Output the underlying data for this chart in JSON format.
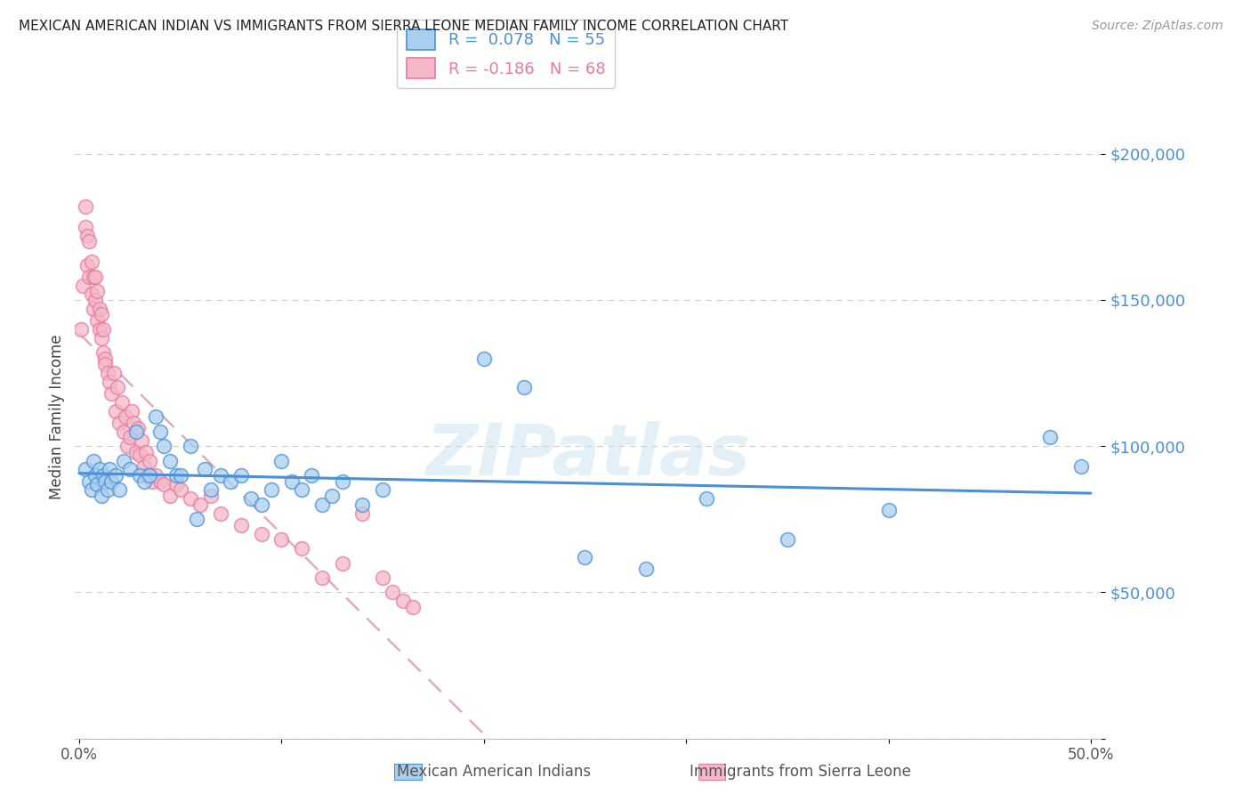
{
  "title": "MEXICAN AMERICAN INDIAN VS IMMIGRANTS FROM SIERRA LEONE MEDIAN FAMILY INCOME CORRELATION CHART",
  "source": "Source: ZipAtlas.com",
  "ylabel": "Median Family Income",
  "yticks": [
    0,
    50000,
    100000,
    150000,
    200000
  ],
  "ytick_labels": [
    "",
    "$50,000",
    "$100,000",
    "$150,000",
    "$200,000"
  ],
  "ylim": [
    0,
    220000
  ],
  "xlim": [
    -0.002,
    0.505
  ],
  "blue_color": "#aacfee",
  "pink_color": "#f4b8c8",
  "blue_line_color": "#4a90d9",
  "pink_line_color": "#e87ba0",
  "pink_dashed_color": "#d4a0b0",
  "watermark": "ZIPatlas",
  "legend_blue_label": "R =  0.078   N = 55",
  "legend_pink_label": "R = -0.186   N = 68",
  "legend_bottom_blue": "Mexican American Indians",
  "legend_bottom_pink": "Immigrants from Sierra Leone",
  "blue_x": [
    0.003,
    0.005,
    0.006,
    0.007,
    0.008,
    0.009,
    0.01,
    0.011,
    0.012,
    0.013,
    0.014,
    0.015,
    0.016,
    0.018,
    0.02,
    0.022,
    0.025,
    0.028,
    0.03,
    0.032,
    0.035,
    0.038,
    0.04,
    0.042,
    0.045,
    0.048,
    0.05,
    0.055,
    0.058,
    0.062,
    0.065,
    0.07,
    0.075,
    0.08,
    0.085,
    0.09,
    0.095,
    0.1,
    0.105,
    0.11,
    0.115,
    0.12,
    0.125,
    0.13,
    0.14,
    0.15,
    0.2,
    0.22,
    0.25,
    0.28,
    0.31,
    0.35,
    0.4,
    0.48,
    0.495
  ],
  "blue_y": [
    92000,
    88000,
    85000,
    95000,
    90000,
    87000,
    92000,
    83000,
    90000,
    88000,
    85000,
    92000,
    88000,
    90000,
    85000,
    95000,
    92000,
    105000,
    90000,
    88000,
    90000,
    110000,
    105000,
    100000,
    95000,
    90000,
    90000,
    100000,
    75000,
    92000,
    85000,
    90000,
    88000,
    90000,
    82000,
    80000,
    85000,
    95000,
    88000,
    85000,
    90000,
    80000,
    83000,
    88000,
    80000,
    85000,
    130000,
    120000,
    62000,
    58000,
    82000,
    68000,
    78000,
    103000,
    93000
  ],
  "pink_x": [
    0.001,
    0.002,
    0.003,
    0.003,
    0.004,
    0.004,
    0.005,
    0.005,
    0.006,
    0.006,
    0.007,
    0.007,
    0.008,
    0.008,
    0.009,
    0.009,
    0.01,
    0.01,
    0.011,
    0.011,
    0.012,
    0.012,
    0.013,
    0.013,
    0.014,
    0.015,
    0.016,
    0.017,
    0.018,
    0.019,
    0.02,
    0.021,
    0.022,
    0.023,
    0.024,
    0.025,
    0.026,
    0.027,
    0.028,
    0.029,
    0.03,
    0.031,
    0.032,
    0.033,
    0.034,
    0.035,
    0.036,
    0.038,
    0.04,
    0.042,
    0.045,
    0.048,
    0.05,
    0.055,
    0.06,
    0.065,
    0.07,
    0.08,
    0.09,
    0.1,
    0.11,
    0.12,
    0.13,
    0.14,
    0.15,
    0.155,
    0.16,
    0.165
  ],
  "pink_y": [
    140000,
    155000,
    175000,
    182000,
    162000,
    172000,
    158000,
    170000,
    152000,
    163000,
    158000,
    147000,
    150000,
    158000,
    143000,
    153000,
    140000,
    147000,
    137000,
    145000,
    132000,
    140000,
    130000,
    128000,
    125000,
    122000,
    118000,
    125000,
    112000,
    120000,
    108000,
    115000,
    105000,
    110000,
    100000,
    103000,
    112000,
    108000,
    98000,
    106000,
    97000,
    102000,
    93000,
    98000,
    90000,
    95000,
    88000,
    90000,
    88000,
    87000,
    83000,
    87000,
    85000,
    82000,
    80000,
    83000,
    77000,
    73000,
    70000,
    68000,
    65000,
    55000,
    60000,
    77000,
    55000,
    50000,
    47000,
    45000
  ]
}
